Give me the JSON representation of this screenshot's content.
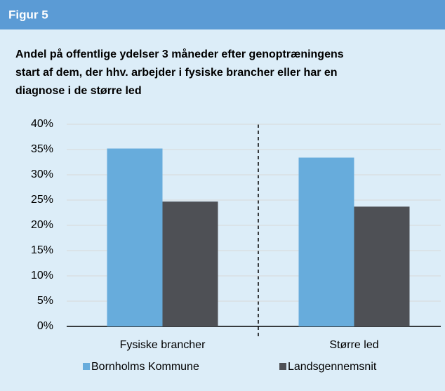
{
  "header": "Figur 5",
  "chart_data": {
    "type": "bar",
    "title_lines": [
      "Andel på offentlige ydelser 3 måneder efter genoptræningens",
      "start af dem, der hhv. arbejder i fysiske brancher eller har en",
      "diagnose i de større led"
    ],
    "categories": [
      "Fysiske brancher",
      "Større led"
    ],
    "series": [
      {
        "name": "Bornholms Kommune",
        "color": "#67acdc",
        "values": [
          35.2,
          33.4
        ]
      },
      {
        "name": "Landsgennemsnit",
        "color": "#4e5055",
        "values": [
          24.7,
          23.7
        ]
      }
    ],
    "ylim": [
      0,
      40
    ],
    "yticks": [
      {
        "value": 0,
        "label": "0%"
      },
      {
        "value": 5,
        "label": "5%"
      },
      {
        "value": 10,
        "label": "10%"
      },
      {
        "value": 15,
        "label": "15%"
      },
      {
        "value": 20,
        "label": "20%"
      },
      {
        "value": 25,
        "label": "25%"
      },
      {
        "value": 30,
        "label": "30%"
      },
      {
        "value": 35,
        "label": "35%"
      },
      {
        "value": 40,
        "label": "40%"
      }
    ],
    "grid": true
  }
}
